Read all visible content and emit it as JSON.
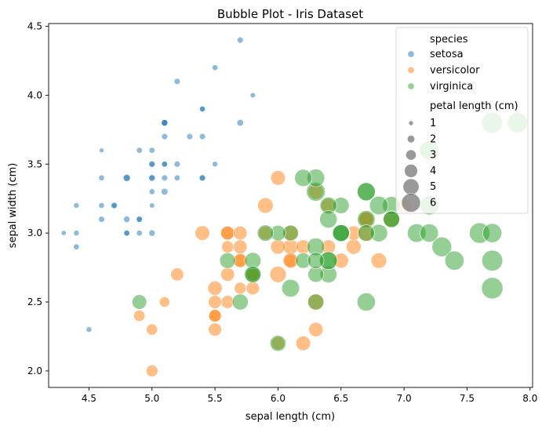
{
  "chart_data": {
    "type": "scatter",
    "title": "Bubble Plot - Iris Dataset",
    "xlabel": "sepal length (cm)",
    "ylabel": "sepal width (cm)",
    "xlim": [
      4.18,
      8.02
    ],
    "ylim": [
      1.88,
      4.52
    ],
    "xticks": [
      4.5,
      5.0,
      5.5,
      6.0,
      6.5,
      7.0,
      7.5,
      8.0
    ],
    "xtick_labels": [
      "4.5",
      "5.0",
      "5.5",
      "6.0",
      "6.5",
      "7.0",
      "7.5",
      "8.0"
    ],
    "yticks": [
      2.0,
      2.5,
      3.0,
      3.5,
      4.0,
      4.5
    ],
    "ytick_labels": [
      "2.0",
      "2.5",
      "3.0",
      "3.5",
      "4.0",
      "4.5"
    ],
    "grid": false,
    "legend_placement": "top-right",
    "legend": {
      "hue_title": "species",
      "size_title": "petal length (cm)",
      "size_labels": [
        "1",
        "2",
        "3",
        "4",
        "5",
        "6"
      ],
      "size_values": [
        1,
        2,
        3,
        4,
        5,
        6
      ]
    },
    "series": [
      {
        "name": "setosa",
        "color": "#1f77b4",
        "points": [
          [
            5.1,
            3.5,
            1.4
          ],
          [
            4.9,
            3.0,
            1.4
          ],
          [
            4.7,
            3.2,
            1.3
          ],
          [
            4.6,
            3.1,
            1.5
          ],
          [
            5.0,
            3.6,
            1.4
          ],
          [
            5.4,
            3.9,
            1.7
          ],
          [
            4.6,
            3.4,
            1.4
          ],
          [
            5.0,
            3.4,
            1.5
          ],
          [
            4.4,
            2.9,
            1.4
          ],
          [
            4.9,
            3.1,
            1.5
          ],
          [
            5.4,
            3.7,
            1.5
          ],
          [
            4.8,
            3.4,
            1.6
          ],
          [
            4.8,
            3.0,
            1.4
          ],
          [
            4.3,
            3.0,
            1.1
          ],
          [
            5.8,
            4.0,
            1.2
          ],
          [
            5.7,
            4.4,
            1.5
          ],
          [
            5.4,
            3.9,
            1.3
          ],
          [
            5.1,
            3.5,
            1.4
          ],
          [
            5.7,
            3.8,
            1.7
          ],
          [
            5.1,
            3.8,
            1.5
          ],
          [
            5.4,
            3.4,
            1.7
          ],
          [
            5.1,
            3.7,
            1.5
          ],
          [
            4.6,
            3.6,
            1.0
          ],
          [
            5.1,
            3.3,
            1.7
          ],
          [
            4.8,
            3.4,
            1.9
          ],
          [
            5.0,
            3.0,
            1.6
          ],
          [
            5.0,
            3.4,
            1.6
          ],
          [
            5.2,
            3.5,
            1.5
          ],
          [
            5.2,
            3.4,
            1.4
          ],
          [
            4.7,
            3.2,
            1.6
          ],
          [
            4.8,
            3.1,
            1.6
          ],
          [
            5.4,
            3.4,
            1.5
          ],
          [
            5.2,
            4.1,
            1.5
          ],
          [
            5.5,
            4.2,
            1.4
          ],
          [
            4.9,
            3.1,
            1.5
          ],
          [
            5.0,
            3.2,
            1.2
          ],
          [
            5.5,
            3.5,
            1.3
          ],
          [
            4.9,
            3.6,
            1.4
          ],
          [
            4.4,
            3.0,
            1.3
          ],
          [
            5.1,
            3.4,
            1.5
          ],
          [
            5.0,
            3.5,
            1.3
          ],
          [
            4.5,
            2.3,
            1.3
          ],
          [
            4.4,
            3.2,
            1.3
          ],
          [
            5.0,
            3.5,
            1.6
          ],
          [
            5.1,
            3.8,
            1.9
          ],
          [
            4.8,
            3.0,
            1.4
          ],
          [
            5.1,
            3.8,
            1.6
          ],
          [
            4.6,
            3.2,
            1.4
          ],
          [
            5.3,
            3.7,
            1.5
          ],
          [
            5.0,
            3.3,
            1.4
          ]
        ]
      },
      {
        "name": "versicolor",
        "color": "#ff7f0e",
        "points": [
          [
            7.0,
            3.2,
            4.7
          ],
          [
            6.4,
            3.2,
            4.5
          ],
          [
            6.9,
            3.1,
            4.9
          ],
          [
            5.5,
            2.3,
            4.0
          ],
          [
            6.5,
            2.8,
            4.6
          ],
          [
            5.7,
            2.8,
            4.5
          ],
          [
            6.3,
            3.3,
            4.7
          ],
          [
            4.9,
            2.4,
            3.3
          ],
          [
            6.6,
            2.9,
            4.6
          ],
          [
            5.2,
            2.7,
            3.9
          ],
          [
            5.0,
            2.0,
            3.5
          ],
          [
            5.9,
            3.0,
            4.2
          ],
          [
            6.0,
            2.2,
            4.0
          ],
          [
            6.1,
            2.9,
            4.7
          ],
          [
            5.6,
            2.9,
            3.6
          ],
          [
            6.7,
            3.1,
            4.4
          ],
          [
            5.6,
            3.0,
            4.5
          ],
          [
            5.8,
            2.7,
            4.1
          ],
          [
            6.2,
            2.2,
            4.5
          ],
          [
            5.6,
            2.5,
            3.9
          ],
          [
            5.9,
            3.2,
            4.8
          ],
          [
            6.1,
            2.8,
            4.0
          ],
          [
            6.3,
            2.5,
            4.9
          ],
          [
            6.1,
            2.8,
            4.7
          ],
          [
            6.4,
            2.9,
            4.3
          ],
          [
            6.6,
            3.0,
            4.4
          ],
          [
            6.8,
            2.8,
            4.8
          ],
          [
            6.7,
            3.0,
            5.0
          ],
          [
            6.0,
            2.9,
            4.5
          ],
          [
            5.7,
            2.6,
            3.5
          ],
          [
            5.5,
            2.4,
            3.8
          ],
          [
            5.5,
            2.4,
            3.7
          ],
          [
            5.8,
            2.7,
            3.9
          ],
          [
            6.0,
            2.7,
            5.1
          ],
          [
            5.4,
            3.0,
            4.5
          ],
          [
            6.0,
            3.4,
            4.5
          ],
          [
            6.7,
            3.1,
            4.7
          ],
          [
            6.3,
            2.3,
            4.4
          ],
          [
            5.6,
            3.0,
            4.1
          ],
          [
            5.5,
            2.5,
            4.0
          ],
          [
            5.5,
            2.6,
            4.4
          ],
          [
            6.1,
            3.0,
            4.6
          ],
          [
            5.8,
            2.6,
            4.0
          ],
          [
            5.0,
            2.3,
            3.3
          ],
          [
            5.6,
            2.7,
            4.2
          ],
          [
            5.7,
            3.0,
            4.2
          ],
          [
            5.7,
            2.9,
            4.2
          ],
          [
            6.2,
            2.9,
            4.3
          ],
          [
            5.1,
            2.5,
            3.0
          ],
          [
            5.7,
            2.8,
            4.1
          ]
        ]
      },
      {
        "name": "virginica",
        "color": "#2ca02c",
        "points": [
          [
            6.3,
            3.3,
            6.0
          ],
          [
            5.8,
            2.7,
            5.1
          ],
          [
            7.1,
            3.0,
            5.9
          ],
          [
            6.3,
            2.9,
            5.6
          ],
          [
            6.5,
            3.0,
            5.8
          ],
          [
            7.6,
            3.0,
            6.6
          ],
          [
            4.9,
            2.5,
            4.5
          ],
          [
            7.3,
            2.9,
            6.3
          ],
          [
            6.7,
            2.5,
            5.8
          ],
          [
            7.2,
            3.6,
            6.1
          ],
          [
            6.5,
            3.2,
            5.1
          ],
          [
            6.4,
            2.7,
            5.3
          ],
          [
            6.8,
            3.0,
            5.5
          ],
          [
            5.7,
            2.5,
            5.0
          ],
          [
            5.8,
            2.8,
            5.1
          ],
          [
            6.4,
            3.2,
            5.3
          ],
          [
            6.5,
            3.0,
            5.5
          ],
          [
            7.7,
            3.8,
            6.7
          ],
          [
            7.7,
            2.6,
            6.9
          ],
          [
            6.0,
            2.2,
            5.0
          ],
          [
            6.9,
            3.2,
            5.7
          ],
          [
            5.6,
            2.8,
            4.9
          ],
          [
            7.7,
            2.8,
            6.7
          ],
          [
            6.3,
            2.7,
            4.9
          ],
          [
            6.7,
            3.3,
            5.7
          ],
          [
            7.2,
            3.2,
            6.0
          ],
          [
            6.2,
            2.8,
            4.8
          ],
          [
            6.1,
            3.0,
            4.9
          ],
          [
            6.4,
            2.8,
            5.6
          ],
          [
            7.2,
            3.0,
            5.8
          ],
          [
            7.4,
            2.8,
            6.1
          ],
          [
            7.9,
            3.8,
            6.4
          ],
          [
            6.4,
            2.8,
            5.6
          ],
          [
            6.3,
            2.8,
            5.1
          ],
          [
            6.1,
            2.6,
            5.6
          ],
          [
            7.7,
            3.0,
            6.1
          ],
          [
            6.3,
            3.4,
            5.6
          ],
          [
            6.4,
            3.1,
            5.5
          ],
          [
            6.0,
            3.0,
            4.8
          ],
          [
            6.9,
            3.1,
            5.4
          ],
          [
            6.7,
            3.1,
            5.6
          ],
          [
            6.9,
            3.1,
            5.1
          ],
          [
            5.8,
            2.7,
            5.1
          ],
          [
            6.8,
            3.2,
            5.9
          ],
          [
            6.7,
            3.3,
            5.7
          ],
          [
            6.7,
            3.0,
            5.2
          ],
          [
            6.3,
            2.5,
            5.0
          ],
          [
            6.5,
            3.0,
            5.2
          ],
          [
            6.2,
            3.4,
            5.4
          ],
          [
            5.9,
            3.0,
            5.1
          ]
        ]
      }
    ]
  }
}
